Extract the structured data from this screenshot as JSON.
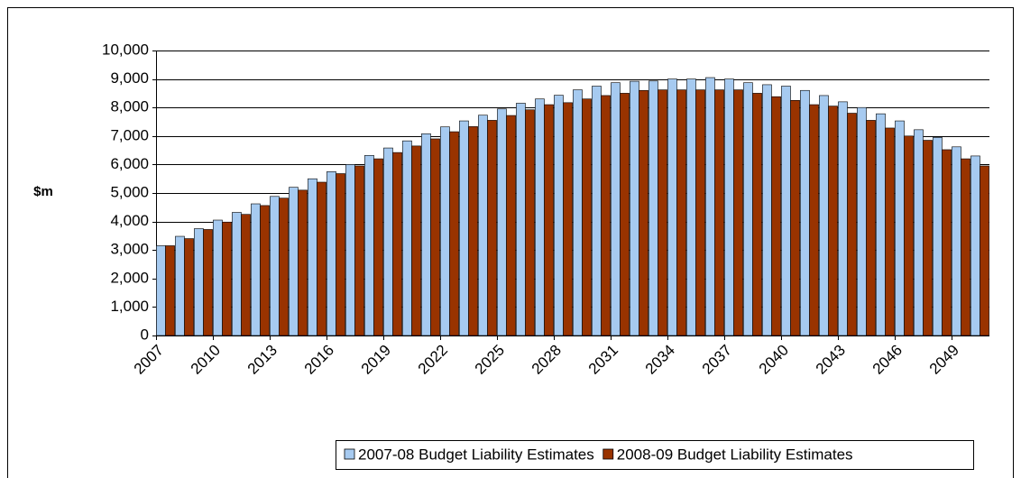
{
  "chart_data": {
    "type": "bar",
    "y_label": "$m",
    "categories": [
      "2007",
      null,
      null,
      "2010",
      null,
      null,
      "2013",
      null,
      null,
      "2016",
      null,
      null,
      "2019",
      null,
      null,
      "2022",
      null,
      null,
      "2025",
      null,
      null,
      "2028",
      null,
      null,
      "2031",
      null,
      null,
      "2034",
      null,
      null,
      "2037",
      null,
      null,
      "2040",
      null,
      null,
      "2043",
      null,
      null,
      "2046",
      null,
      null,
      "2049",
      null
    ],
    "series": [
      {
        "name": "2007-08 Budget Liability Estimates",
        "color": "#a6caf0",
        "values": [
          3150,
          3480,
          3750,
          4050,
          4320,
          4620,
          4880,
          5200,
          5500,
          5750,
          6000,
          6320,
          6580,
          6830,
          7080,
          7320,
          7530,
          7730,
          7950,
          8150,
          8300,
          8430,
          8620,
          8750,
          8870,
          8920,
          8930,
          9000,
          9000,
          9050,
          9000,
          8870,
          8800,
          8750,
          8600,
          8420,
          8200,
          8000,
          7780,
          7530,
          7220,
          6950,
          6620,
          6300
        ]
      },
      {
        "name": "2008-09 Budget Liability Estimates",
        "color": "#993300",
        "values": [
          3150,
          3400,
          3720,
          3980,
          4250,
          4560,
          4820,
          5100,
          5380,
          5680,
          5950,
          6200,
          6420,
          6650,
          6900,
          7150,
          7330,
          7550,
          7720,
          7920,
          8100,
          8170,
          8300,
          8420,
          8500,
          8600,
          8620,
          8620,
          8620,
          8620,
          8620,
          8500,
          8380,
          8250,
          8100,
          8050,
          7800,
          7550,
          7280,
          7000,
          6850,
          6520,
          6200,
          5950
        ]
      }
    ],
    "ylim": [
      0,
      10000
    ],
    "yticks": [
      0,
      {
        "value": 1000,
        "label": "1,000"
      },
      {
        "value": 2000,
        "label": "2,000"
      },
      {
        "value": 3000,
        "label": "3,000"
      },
      {
        "value": 4000,
        "label": "4,000"
      },
      {
        "value": 5000,
        "label": "5,000"
      },
      {
        "value": 6000,
        "label": "6,000"
      },
      {
        "value": 7000,
        "label": "7,000"
      },
      {
        "value": 8000,
        "label": "8,000"
      },
      {
        "value": 9000,
        "label": "9,000"
      },
      {
        "value": 10000,
        "label": "10,000"
      }
    ],
    "grid": true
  }
}
